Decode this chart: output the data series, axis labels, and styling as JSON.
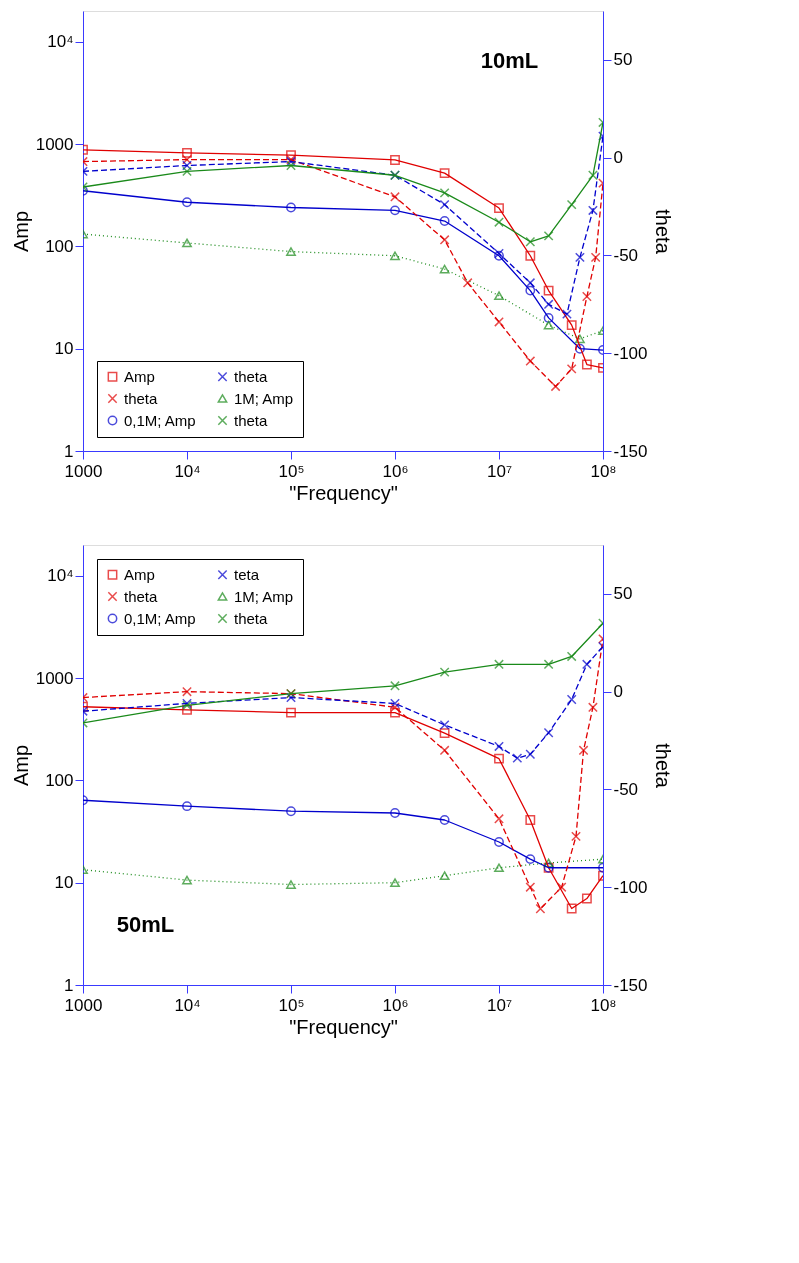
{
  "chart_data": [
    {
      "type": "line",
      "xlabel": "\"Frequency\"",
      "ylabel": "Amp",
      "y2label": "theta",
      "annotations": [
        "10mL"
      ],
      "log": "xy",
      "grid": false,
      "legend": "bottom left",
      "xlim": [
        1000,
        100000000
      ],
      "xticks": [
        1000,
        {
          "value": 10000,
          "label": "10⁴"
        },
        {
          "value": 100000,
          "label": "10⁵"
        },
        {
          "value": 1000000,
          "label": "10⁶"
        },
        {
          "value": 10000000,
          "label": "10⁷"
        },
        {
          "value": 100000000,
          "label": "10⁸"
        }
      ],
      "ylim": [
        1,
        20000
      ],
      "yticks": [
        1,
        10,
        100,
        1000,
        {
          "value": 10000,
          "label": "10⁴"
        }
      ],
      "y2lim": [
        -150,
        75
      ],
      "y2ticks": [
        -150,
        -100,
        -50,
        0,
        50
      ],
      "series": [
        {
          "name": "Amp",
          "color": "#e00000",
          "marker": "square",
          "line_style": "solid",
          "x": [
            1000,
            10000,
            100000,
            1000000,
            3000000,
            10000000,
            20000000,
            30000000,
            50000000,
            70000000,
            100000000
          ],
          "values": [
            880,
            820,
            780,
            700,
            520,
            237,
            81,
            37,
            17,
            7,
            6.5
          ]
        },
        {
          "name": "theta",
          "color": "#e00000",
          "marker": "cross",
          "line_style": "dashed",
          "axis": "y2",
          "x": [
            1000,
            10000,
            100000,
            1000000,
            3000000,
            5000000,
            10000000,
            20000000,
            35000000,
            50000000,
            70000000,
            85000000,
            100000000
          ],
          "values": [
            -2,
            -1,
            -1,
            -20,
            -42,
            -64,
            -84,
            -104,
            -117,
            -108,
            -71,
            -51,
            -13
          ]
        },
        {
          "name": "0,1M; Amp",
          "color": "#0000cc",
          "marker": "circle",
          "line_style": "solid",
          "x": [
            1000,
            10000,
            100000,
            1000000,
            3000000,
            10000000,
            20000000,
            30000000,
            60000000,
            100000000
          ],
          "values": [
            350,
            270,
            240,
            225,
            177,
            81,
            37,
            20,
            10,
            9.7
          ]
        },
        {
          "name": "theta",
          "color": "#0000cc",
          "marker": "cross",
          "line_style": "dashed",
          "axis": "y2",
          "x": [
            1000,
            10000,
            100000,
            1000000,
            3000000,
            10000000,
            20000000,
            30000000,
            45000000,
            60000000,
            80000000,
            100000000
          ],
          "values": [
            -7,
            -4,
            -2,
            -9,
            -24,
            -49,
            -64,
            -75,
            -80,
            -51,
            -27,
            11
          ]
        },
        {
          "name": "1M; Amp",
          "color": "#1a8a1a",
          "marker": "triangle",
          "line_style": "dotted",
          "x": [
            1000,
            10000,
            100000,
            1000000,
            3000000,
            10000000,
            30000000,
            60000000,
            100000000
          ],
          "values": [
            132,
            108,
            89,
            81,
            60,
            33,
            17,
            12.5,
            15
          ]
        },
        {
          "name": "theta",
          "color": "#1a8a1a",
          "marker": "cross",
          "line_style": "solid",
          "axis": "y2",
          "x": [
            1000,
            10000,
            100000,
            1000000,
            3000000,
            10000000,
            20000000,
            30000000,
            50000000,
            80000000,
            100000000
          ],
          "values": [
            -15,
            -7,
            -4,
            -9,
            -18,
            -33,
            -43,
            -40,
            -24,
            -9,
            18
          ]
        }
      ]
    },
    {
      "type": "line",
      "xlabel": "\"Frequency\"",
      "ylabel": "Amp",
      "y2label": "theta",
      "annotations": [
        "50mL"
      ],
      "log": "xy",
      "grid": false,
      "legend": "top left",
      "xlim": [
        1000,
        100000000
      ],
      "xticks": [
        1000,
        {
          "value": 10000,
          "label": "10⁴"
        },
        {
          "value": 100000,
          "label": "10⁵"
        },
        {
          "value": 1000000,
          "label": "10⁶"
        },
        {
          "value": 10000000,
          "label": "10⁷"
        },
        {
          "value": 100000000,
          "label": "10⁸"
        }
      ],
      "ylim": [
        1,
        20000
      ],
      "yticks": [
        1,
        10,
        100,
        1000,
        {
          "value": 10000,
          "label": "10⁴"
        }
      ],
      "y2lim": [
        -150,
        75
      ],
      "y2ticks": [
        -150,
        -100,
        -50,
        0,
        50
      ],
      "series": [
        {
          "name": "Amp",
          "color": "#e00000",
          "marker": "square",
          "line_style": "solid",
          "x": [
            1000,
            10000,
            100000,
            1000000,
            3000000,
            10000000,
            20000000,
            30000000,
            50000000,
            70000000,
            100000000
          ],
          "values": [
            525,
            490,
            460,
            460,
            290,
            163,
            41,
            14,
            5.6,
            7,
            11.7
          ]
        },
        {
          "name": "theta",
          "color": "#e00000",
          "marker": "cross",
          "line_style": "dashed",
          "axis": "y2",
          "x": [
            1000,
            10000,
            100000,
            1000000,
            3000000,
            10000000,
            20000000,
            25000000,
            40000000,
            55000000,
            65000000,
            80000000,
            100000000
          ],
          "values": [
            -3,
            0,
            -1,
            -8,
            -30,
            -65,
            -100,
            -111,
            -100,
            -74,
            -30,
            -8,
            27
          ]
        },
        {
          "name": "0,1M; Amp",
          "color": "#0000cc",
          "marker": "circle",
          "line_style": "solid",
          "x": [
            1000,
            10000,
            100000,
            1000000,
            3000000,
            10000000,
            20000000,
            30000000,
            100000000
          ],
          "values": [
            64,
            56,
            50,
            48,
            41,
            25,
            17,
            14,
            14
          ]
        },
        {
          "name": "teta",
          "color": "#0000cc",
          "marker": "cross",
          "line_style": "dashed",
          "axis": "y2",
          "x": [
            1000,
            10000,
            100000,
            1000000,
            3000000,
            10000000,
            15000000,
            20000000,
            30000000,
            50000000,
            70000000,
            100000000
          ],
          "values": [
            -10,
            -6,
            -3,
            -6,
            -17,
            -28,
            -34,
            -32,
            -21,
            -4,
            14,
            23
          ]
        },
        {
          "name": "1M; Amp",
          "color": "#1a8a1a",
          "marker": "triangle",
          "line_style": "dotted",
          "x": [
            1000,
            10000,
            100000,
            1000000,
            3000000,
            10000000,
            30000000,
            100000000
          ],
          "values": [
            13.4,
            10.6,
            9.6,
            10,
            11.7,
            14,
            15.6,
            17
          ]
        },
        {
          "name": "theta",
          "color": "#1a8a1a",
          "marker": "cross",
          "line_style": "solid",
          "axis": "y2",
          "x": [
            1000,
            10000,
            100000,
            1000000,
            3000000,
            10000000,
            30000000,
            50000000,
            100000000
          ],
          "values": [
            -16,
            -7,
            -1,
            3,
            10,
            14,
            14,
            18,
            35
          ]
        }
      ]
    }
  ]
}
